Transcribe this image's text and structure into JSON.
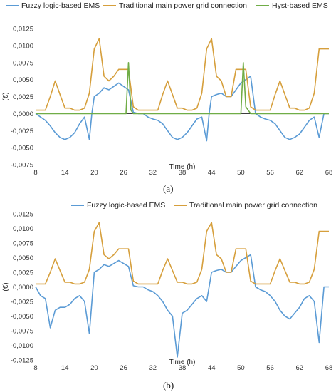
{
  "chart_data": [
    {
      "type": "line",
      "panel_label": "(a)",
      "ylabel": "(€)",
      "xlabel": "Time (h)",
      "xlim": [
        8,
        68
      ],
      "ylim": [
        -0.0075,
        0.0125
      ],
      "x_ticks": [
        "8",
        "14",
        "20",
        "26",
        "32",
        "38",
        "44",
        "50",
        "56",
        "62",
        "68"
      ],
      "y_ticks": [
        "0,0125",
        "0,0100",
        "0,0075",
        "0,0050",
        "0,0025",
        "0,0000",
        "-0,0025",
        "-0,0050",
        "-0,0075"
      ],
      "y_tick_values": [
        0.0125,
        0.01,
        0.0075,
        0.005,
        0.0025,
        0,
        -0.0025,
        -0.005,
        -0.0075
      ],
      "legend_position": "top",
      "grid": false,
      "series": [
        {
          "name": "Fuzzy logic-based EMS",
          "color": "#5b9bd5",
          "x": [
            8,
            9,
            10,
            11,
            12,
            13,
            14,
            15,
            16,
            17,
            18,
            19,
            19.5,
            20,
            21,
            22,
            23,
            24,
            25,
            26,
            27,
            28,
            29,
            30,
            31,
            32,
            33,
            34,
            35,
            36,
            37,
            38,
            39,
            40,
            41,
            42,
            43,
            43.5,
            44,
            45,
            46,
            47,
            48,
            49,
            50,
            51,
            52,
            53,
            54,
            55,
            56,
            57,
            58,
            59,
            60,
            61,
            62,
            63,
            64,
            65,
            66,
            67,
            68
          ],
          "y": [
            0.0,
            -0.0005,
            -0.001,
            -0.0018,
            -0.0028,
            -0.0035,
            -0.0038,
            -0.0035,
            -0.0028,
            -0.0015,
            -0.0005,
            -0.0038,
            0.0,
            0.0025,
            0.003,
            0.0038,
            0.0035,
            0.004,
            0.0045,
            0.004,
            0.0035,
            0.0002,
            0.0,
            0.0,
            -0.0005,
            -0.0008,
            -0.001,
            -0.0015,
            -0.0025,
            -0.0035,
            -0.0038,
            -0.0035,
            -0.0028,
            -0.0018,
            -0.0008,
            -0.0005,
            -0.004,
            0.0,
            0.0025,
            0.0028,
            0.003,
            0.0025,
            0.0025,
            0.0035,
            0.0045,
            0.005,
            0.0055,
            0.0,
            -0.0005,
            -0.0008,
            -0.001,
            -0.0015,
            -0.0025,
            -0.0035,
            -0.0038,
            -0.0035,
            -0.003,
            -0.002,
            -0.001,
            -0.0005,
            -0.0035,
            0.0,
            0.0
          ]
        },
        {
          "name": "Traditional main power grid connection",
          "color": "#d69f3c",
          "x": [
            8,
            9,
            10,
            11,
            12,
            13,
            14,
            15,
            16,
            17,
            18,
            19,
            20,
            21,
            22,
            23,
            24,
            25,
            26,
            27,
            28,
            29,
            30,
            31,
            32,
            33,
            34,
            35,
            36,
            37,
            38,
            39,
            40,
            41,
            42,
            43,
            44,
            45,
            46,
            47,
            48,
            49,
            50,
            51,
            52,
            53,
            54,
            55,
            56,
            57,
            58,
            59,
            60,
            61,
            62,
            63,
            64,
            65,
            66,
            67,
            68
          ],
          "y": [
            0.0005,
            0.0005,
            0.0005,
            0.0025,
            0.0048,
            0.0028,
            0.0008,
            0.0008,
            0.0005,
            0.0005,
            0.0008,
            0.003,
            0.0095,
            0.011,
            0.0055,
            0.0048,
            0.0055,
            0.0065,
            0.0065,
            0.0065,
            0.001,
            0.0005,
            0.0005,
            0.0005,
            0.0005,
            0.0005,
            0.0028,
            0.0048,
            0.0028,
            0.0008,
            0.0008,
            0.0005,
            0.0005,
            0.0008,
            0.003,
            0.0095,
            0.011,
            0.0055,
            0.0048,
            0.0025,
            0.0025,
            0.0065,
            0.0065,
            0.0065,
            0.001,
            0.0005,
            0.0005,
            0.0005,
            0.0005,
            0.0028,
            0.0048,
            0.0028,
            0.0008,
            0.0008,
            0.0005,
            0.0005,
            0.0008,
            0.003,
            0.0095,
            0.0095,
            0.0095
          ]
        },
        {
          "name": "Hyst-based EMS",
          "color": "#70ad47",
          "x": [
            8,
            26.5,
            27,
            27.5,
            28,
            50,
            50.5,
            51,
            51.5,
            52,
            68
          ],
          "y": [
            0.0,
            0.0,
            0.0075,
            0.0005,
            0.0,
            0.0,
            0.0075,
            0.001,
            0.0005,
            0.0,
            0.0
          ]
        }
      ]
    },
    {
      "type": "line",
      "panel_label": "(b)",
      "ylabel": "(€)",
      "xlabel": "Time (h)",
      "xlim": [
        8,
        68
      ],
      "ylim": [
        -0.0125,
        0.0125
      ],
      "x_ticks": [
        "8",
        "14",
        "20",
        "26",
        "32",
        "38",
        "44",
        "50",
        "56",
        "62",
        "68"
      ],
      "y_ticks": [
        "0,0125",
        "0,0100",
        "0,0075",
        "0,0050",
        "0,0025",
        "0,0000",
        "-0,0025",
        "-0,0050",
        "-0,0075",
        "-0,0100",
        "-0,0125"
      ],
      "y_tick_values": [
        0.0125,
        0.01,
        0.0075,
        0.005,
        0.0025,
        0,
        -0.0025,
        -0.005,
        -0.0075,
        -0.01,
        -0.0125
      ],
      "legend_position": "top",
      "grid": false,
      "series": [
        {
          "name": "Fuzzy logic-based EMS",
          "color": "#5b9bd5",
          "x": [
            8,
            9,
            10,
            11,
            12,
            13,
            14,
            15,
            16,
            17,
            18,
            19,
            20,
            21,
            22,
            23,
            24,
            25,
            26,
            27,
            28,
            29,
            30,
            31,
            32,
            33,
            34,
            35,
            36,
            37,
            38,
            39,
            40,
            41,
            42,
            43,
            44,
            45,
            46,
            47,
            48,
            49,
            50,
            51,
            52,
            53,
            54,
            55,
            56,
            57,
            58,
            59,
            60,
            61,
            62,
            63,
            64,
            65,
            66,
            67,
            68
          ],
          "y": [
            0.0,
            -0.0015,
            -0.002,
            -0.007,
            -0.004,
            -0.0035,
            -0.0035,
            -0.003,
            -0.002,
            -0.0015,
            -0.0025,
            -0.008,
            0.0025,
            0.003,
            0.0038,
            0.0035,
            0.004,
            0.0045,
            0.004,
            0.0035,
            0.0002,
            0.0,
            0.0,
            -0.0005,
            -0.0008,
            -0.0015,
            -0.0025,
            -0.004,
            -0.005,
            -0.012,
            -0.0045,
            -0.004,
            -0.003,
            -0.002,
            -0.0015,
            -0.0025,
            0.0025,
            0.0028,
            0.003,
            0.0025,
            0.0025,
            0.0035,
            0.0045,
            0.005,
            0.0055,
            0.0,
            -0.0005,
            -0.0008,
            -0.0015,
            -0.0025,
            -0.004,
            -0.005,
            -0.0055,
            -0.0045,
            -0.0035,
            -0.002,
            -0.0015,
            -0.0025,
            -0.0095,
            0.0,
            0.0
          ]
        },
        {
          "name": "Traditional main power grid connection",
          "color": "#d69f3c",
          "x": [
            8,
            9,
            10,
            11,
            12,
            13,
            14,
            15,
            16,
            17,
            18,
            19,
            20,
            21,
            22,
            23,
            24,
            25,
            26,
            27,
            28,
            29,
            30,
            31,
            32,
            33,
            34,
            35,
            36,
            37,
            38,
            39,
            40,
            41,
            42,
            43,
            44,
            45,
            46,
            47,
            48,
            49,
            50,
            51,
            52,
            53,
            54,
            55,
            56,
            57,
            58,
            59,
            60,
            61,
            62,
            63,
            64,
            65,
            66,
            67,
            68
          ],
          "y": [
            0.0005,
            0.0005,
            0.0005,
            0.0025,
            0.0048,
            0.0028,
            0.0008,
            0.0008,
            0.0005,
            0.0005,
            0.0008,
            0.003,
            0.0095,
            0.011,
            0.0055,
            0.0048,
            0.0055,
            0.0065,
            0.0065,
            0.0065,
            0.001,
            0.0005,
            0.0005,
            0.0005,
            0.0005,
            0.0005,
            0.0028,
            0.0048,
            0.0028,
            0.0008,
            0.0008,
            0.0005,
            0.0005,
            0.0008,
            0.003,
            0.0095,
            0.011,
            0.0055,
            0.0048,
            0.0025,
            0.0025,
            0.0065,
            0.0065,
            0.0065,
            0.001,
            0.0005,
            0.0005,
            0.0005,
            0.0005,
            0.0028,
            0.0048,
            0.0028,
            0.0008,
            0.0008,
            0.0005,
            0.0005,
            0.0008,
            0.003,
            0.0095,
            0.0095,
            0.0095
          ]
        }
      ]
    }
  ]
}
